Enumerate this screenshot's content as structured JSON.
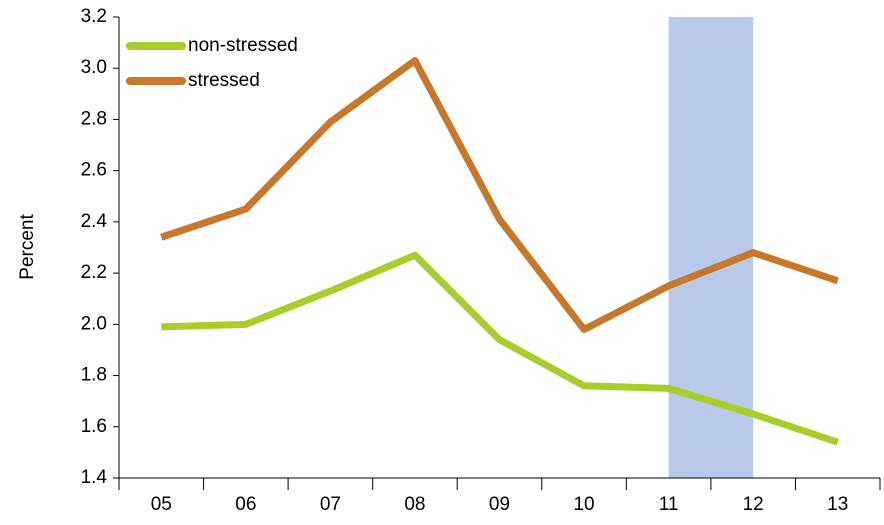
{
  "chart_data": {
    "type": "line",
    "y_label": "Percent",
    "categories": [
      "05",
      "06",
      "07",
      "08",
      "09",
      "10",
      "11",
      "12",
      "13"
    ],
    "series": [
      {
        "name": "non-stressed",
        "color": "#a9cd2b",
        "values": [
          1.99,
          2.0,
          2.13,
          2.27,
          1.94,
          1.76,
          1.75,
          1.65,
          1.54
        ]
      },
      {
        "name": "stressed",
        "color": "#c8782a",
        "values": [
          2.34,
          2.45,
          2.79,
          3.03,
          2.41,
          1.98,
          2.15,
          2.28,
          2.17
        ]
      }
    ],
    "ylim": [
      1.4,
      3.2
    ],
    "yticks": [
      1.4,
      1.6,
      1.8,
      {
        "value": 2,
        "label": "2.0"
      },
      2.2,
      2.4,
      2.6,
      2.8,
      {
        "value": 3,
        "label": "3.0"
      },
      3.2
    ],
    "highlight": {
      "from": "11",
      "to": "12",
      "color": "#b8c9ea"
    },
    "legend": "upper-left"
  }
}
